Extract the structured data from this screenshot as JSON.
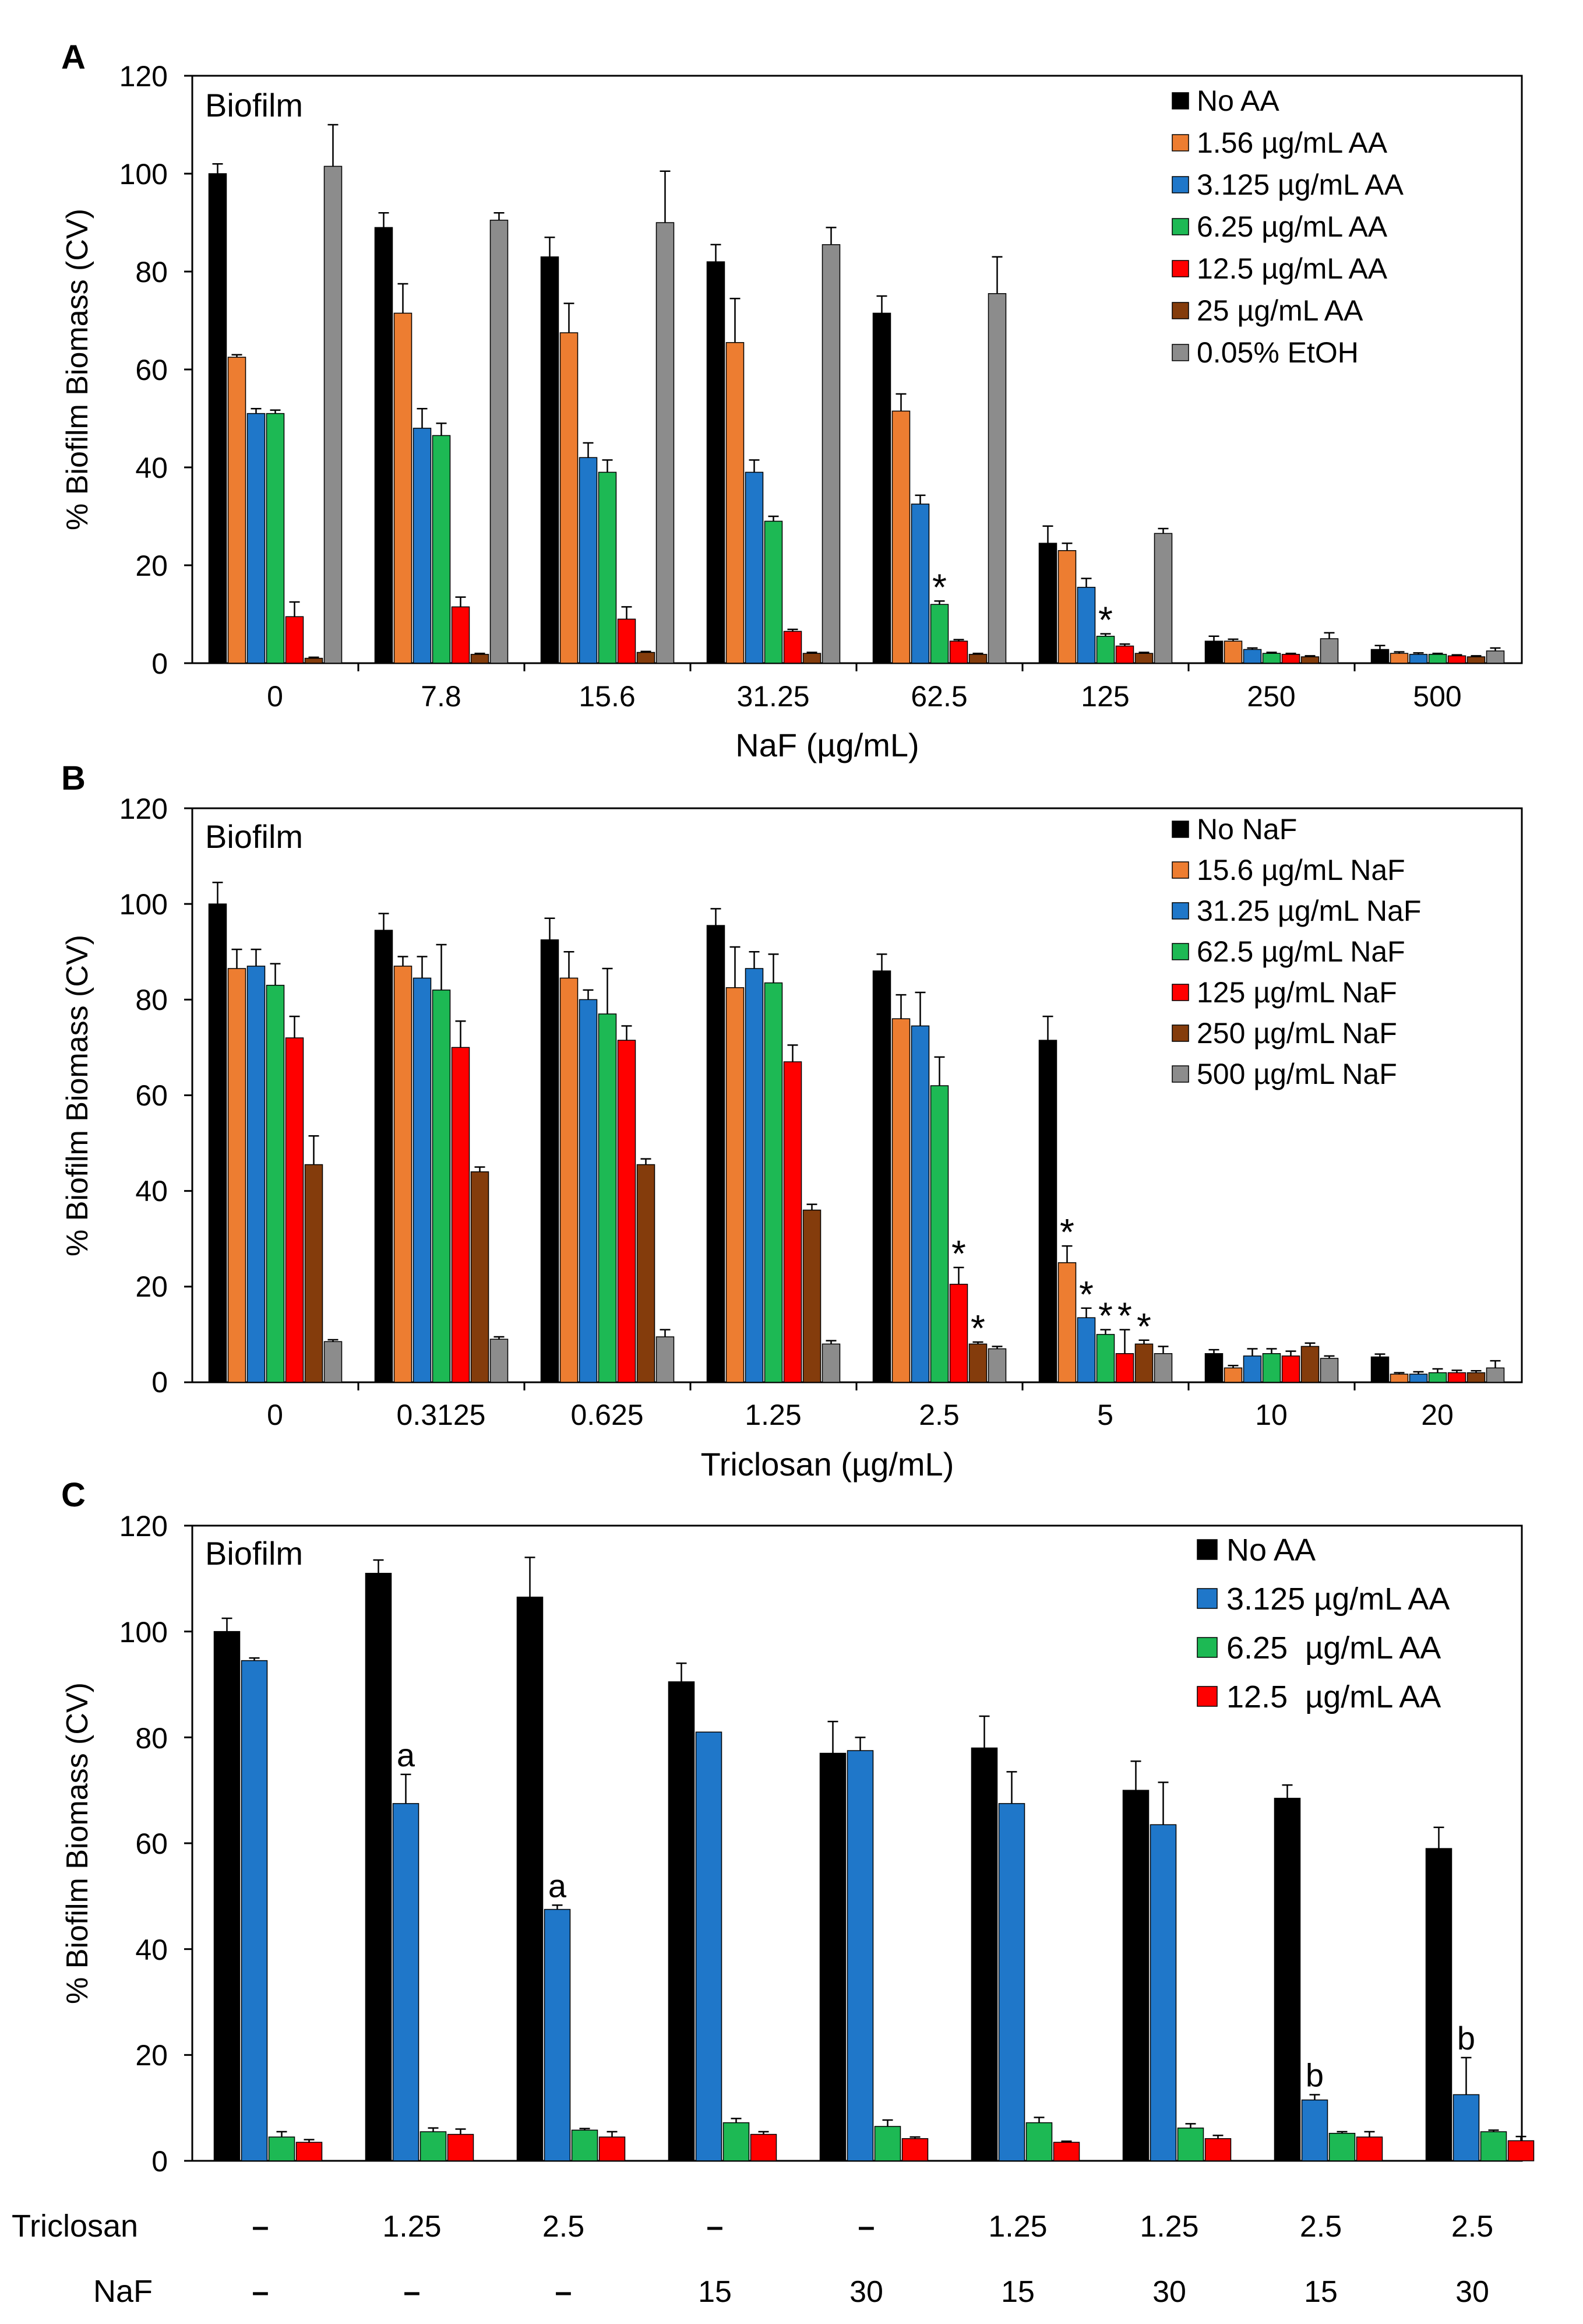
{
  "chart_data": [
    {
      "panel": "A",
      "type": "bar",
      "title": "Biofilm",
      "ylabel": "% Biofilm Biomass (CV)",
      "xlabel": "NaF (µg/mL)",
      "ylim": [
        0,
        120
      ],
      "yticks": [
        "0",
        "20",
        "40",
        "60",
        "80",
        "100",
        "120"
      ],
      "categories": [
        "0",
        "7.8",
        "15.6",
        "31.25",
        "62.5",
        "125",
        "250",
        "500"
      ],
      "series": [
        {
          "name": "No AA",
          "color": "#000000",
          "values": [
            100,
            89,
            83,
            82,
            71.5,
            24.5,
            4.5,
            2.8
          ],
          "errors": [
            2,
            3,
            4,
            3.5,
            3.5,
            3.5,
            1,
            0.8
          ]
        },
        {
          "name": "1.56 µg/mL AA",
          "color": "#ED7D31",
          "values": [
            62.5,
            71.5,
            67.5,
            65.5,
            51.5,
            23,
            4.5,
            2
          ],
          "errors": [
            0.5,
            6,
            6,
            9,
            3.5,
            1.5,
            0.4,
            0.3
          ]
        },
        {
          "name": "3.125 µg/mL AA",
          "color": "#1F77C9",
          "values": [
            51,
            48,
            42,
            39,
            32.5,
            15.5,
            2.8,
            1.8
          ],
          "errors": [
            1,
            4,
            3,
            2.5,
            1.8,
            1.8,
            0.3,
            0.3
          ]
        },
        {
          "name": "6.25 µg/mL AA",
          "color": "#1DB954",
          "values": [
            51,
            46.5,
            39,
            29,
            12,
            5.5,
            2,
            1.8
          ],
          "errors": [
            0.7,
            2.5,
            2.5,
            1,
            0.7,
            0.5,
            0.2,
            0.2
          ]
        },
        {
          "name": "12.5 µg/mL AA",
          "color": "#FF0000",
          "values": [
            9.5,
            11.5,
            9,
            6.5,
            4.5,
            3.5,
            1.8,
            1.5
          ],
          "errors": [
            3,
            2,
            2.5,
            0.4,
            0.3,
            0.4,
            0.2,
            0.2
          ]
        },
        {
          "name": "25 µg/mL AA",
          "color": "#843C0C",
          "values": [
            1,
            1.8,
            2.2,
            2,
            1.8,
            2,
            1.3,
            1.3
          ],
          "errors": [
            0.2,
            0.2,
            0.2,
            0.2,
            0.2,
            0.2,
            0.2,
            0.2
          ]
        },
        {
          "name": "0.05% EtOH",
          "color": "#8C8C8C",
          "values": [
            101.5,
            90.5,
            90,
            85.5,
            75.5,
            26.5,
            5,
            2.5
          ],
          "errors": [
            8.5,
            1.5,
            10.5,
            3.5,
            7.5,
            1,
            1.2,
            0.6
          ]
        }
      ],
      "annotations": [
        {
          "text": "*",
          "category": 4,
          "series": 3
        },
        {
          "text": "*",
          "category": 5,
          "series": 3
        }
      ]
    },
    {
      "panel": "B",
      "type": "bar",
      "title": "Biofilm",
      "ylabel": "% Biofilm Biomass (CV)",
      "xlabel": "Triclosan (µg/mL)",
      "ylim": [
        0,
        120
      ],
      "yticks": [
        "0",
        "20",
        "40",
        "60",
        "80",
        "100",
        "120"
      ],
      "categories": [
        "0",
        "0.3125",
        "0.625",
        "1.25",
        "2.5",
        "5",
        "10",
        "20"
      ],
      "series": [
        {
          "name": "No NaF",
          "color": "#000000",
          "values": [
            100,
            94.5,
            92.5,
            95.5,
            86,
            71.5,
            6,
            5.3
          ],
          "errors": [
            4.5,
            3.5,
            4.5,
            3.5,
            3.5,
            5,
            0.8,
            0.6
          ]
        },
        {
          "name": "15.6 µg/mL NaF",
          "color": "#ED7D31",
          "values": [
            86.5,
            87,
            84.5,
            82.5,
            76,
            25,
            3,
            1.7
          ],
          "errors": [
            4,
            2,
            5.5,
            8.5,
            5,
            3.5,
            0.5,
            0.3
          ]
        },
        {
          "name": "31.25 µg/mL NaF",
          "color": "#1F77C9",
          "values": [
            87,
            84.5,
            80,
            86.5,
            74.5,
            13.5,
            5.5,
            1.7
          ],
          "errors": [
            3.5,
            4.5,
            2,
            3.5,
            7,
            2,
            1.5,
            0.5
          ]
        },
        {
          "name": "62.5 µg/mL NaF",
          "color": "#1DB954",
          "values": [
            83,
            82,
            77,
            83.5,
            62,
            10,
            6,
            2
          ],
          "errors": [
            4.5,
            9.5,
            9.5,
            6,
            6,
            1,
            1,
            0.8
          ]
        },
        {
          "name": "125 µg/mL NaF",
          "color": "#FF0000",
          "values": [
            72,
            70,
            71.5,
            67,
            20.5,
            6,
            5.5,
            2
          ],
          "errors": [
            4.5,
            5.5,
            3,
            3.5,
            3.5,
            5,
            1,
            0.5
          ]
        },
        {
          "name": "250 µg/mL NaF",
          "color": "#843C0C",
          "values": [
            45.5,
            44,
            45.5,
            36,
            8,
            8,
            7.5,
            2
          ],
          "errors": [
            6,
            1,
            1.2,
            1.2,
            0.4,
            0.8,
            0.7,
            0.4
          ]
        },
        {
          "name": "500 µg/mL NaF",
          "color": "#8C8C8C",
          "values": [
            8.5,
            9,
            9.5,
            8,
            7,
            6,
            5,
            3
          ],
          "errors": [
            0.4,
            0.5,
            1.5,
            0.7,
            0.5,
            1.5,
            0.5,
            1.5
          ]
        }
      ],
      "annotations": [
        {
          "text": "*",
          "category": 4,
          "series": 4
        },
        {
          "text": "*",
          "category": 4,
          "series": 5
        },
        {
          "text": "*",
          "category": 5,
          "series": 1
        },
        {
          "text": "*",
          "category": 5,
          "series": 2
        },
        {
          "text": "*",
          "category": 5,
          "series": 3
        },
        {
          "text": "*",
          "category": 5,
          "series": 4
        },
        {
          "text": "*",
          "category": 5,
          "series": 5
        }
      ]
    },
    {
      "panel": "C",
      "type": "bar",
      "title": "Biofilm",
      "ylabel": "% Biofilm Biomass (CV)",
      "ylim": [
        0,
        120
      ],
      "yticks": [
        "0",
        "20",
        "40",
        "60",
        "80",
        "100",
        "120"
      ],
      "row_labels": [
        "Triclosan",
        "NaF"
      ],
      "triclosan": [
        "–",
        "1.25",
        "2.5",
        "–",
        "–",
        "1.25",
        "1.25",
        "2.5",
        "2.5"
      ],
      "naf": [
        "–",
        "–",
        "–",
        "15",
        "30",
        "15",
        "30",
        "15",
        "30"
      ],
      "series": [
        {
          "name": "No AA",
          "color": "#000000",
          "values": [
            100,
            111,
            106.5,
            90.5,
            77,
            78,
            70,
            68.5,
            59
          ],
          "errors": [
            2.5,
            2.5,
            7.5,
            3.5,
            6,
            6,
            5.5,
            2.5,
            4
          ]
        },
        {
          "name": "3.125 µg/mL AA",
          "color": "#1F77C9",
          "values": [
            94.5,
            67.5,
            47.5,
            81,
            77.5,
            67.5,
            63.5,
            11.5,
            12.5
          ],
          "errors": [
            0.5,
            5.5,
            0.8,
            0,
            2.5,
            6,
            8,
            1,
            7
          ]
        },
        {
          "name": "6.25  µg/mL AA",
          "color": "#1DB954",
          "values": [
            4.5,
            5.5,
            5.8,
            7.2,
            6.5,
            7.2,
            6.2,
            5.2,
            5.5
          ],
          "errors": [
            1,
            0.7,
            0.3,
            0.8,
            1.2,
            1,
            0.8,
            0.3,
            0.3
          ]
        },
        {
          "name": "12.5  µg/mL AA",
          "color": "#FF0000",
          "values": [
            3.5,
            5,
            4.5,
            5,
            4.2,
            3.5,
            4.2,
            4.5,
            3.8
          ],
          "errors": [
            0.5,
            1,
            1,
            0.5,
            0.3,
            0.2,
            0.6,
            1,
            0.8
          ]
        }
      ],
      "annotations": [
        {
          "text": "a",
          "category": 1,
          "series": 1
        },
        {
          "text": "a",
          "category": 2,
          "series": 1
        },
        {
          "text": "b",
          "category": 7,
          "series": 1
        },
        {
          "text": "b",
          "category": 8,
          "series": 1
        }
      ]
    }
  ]
}
